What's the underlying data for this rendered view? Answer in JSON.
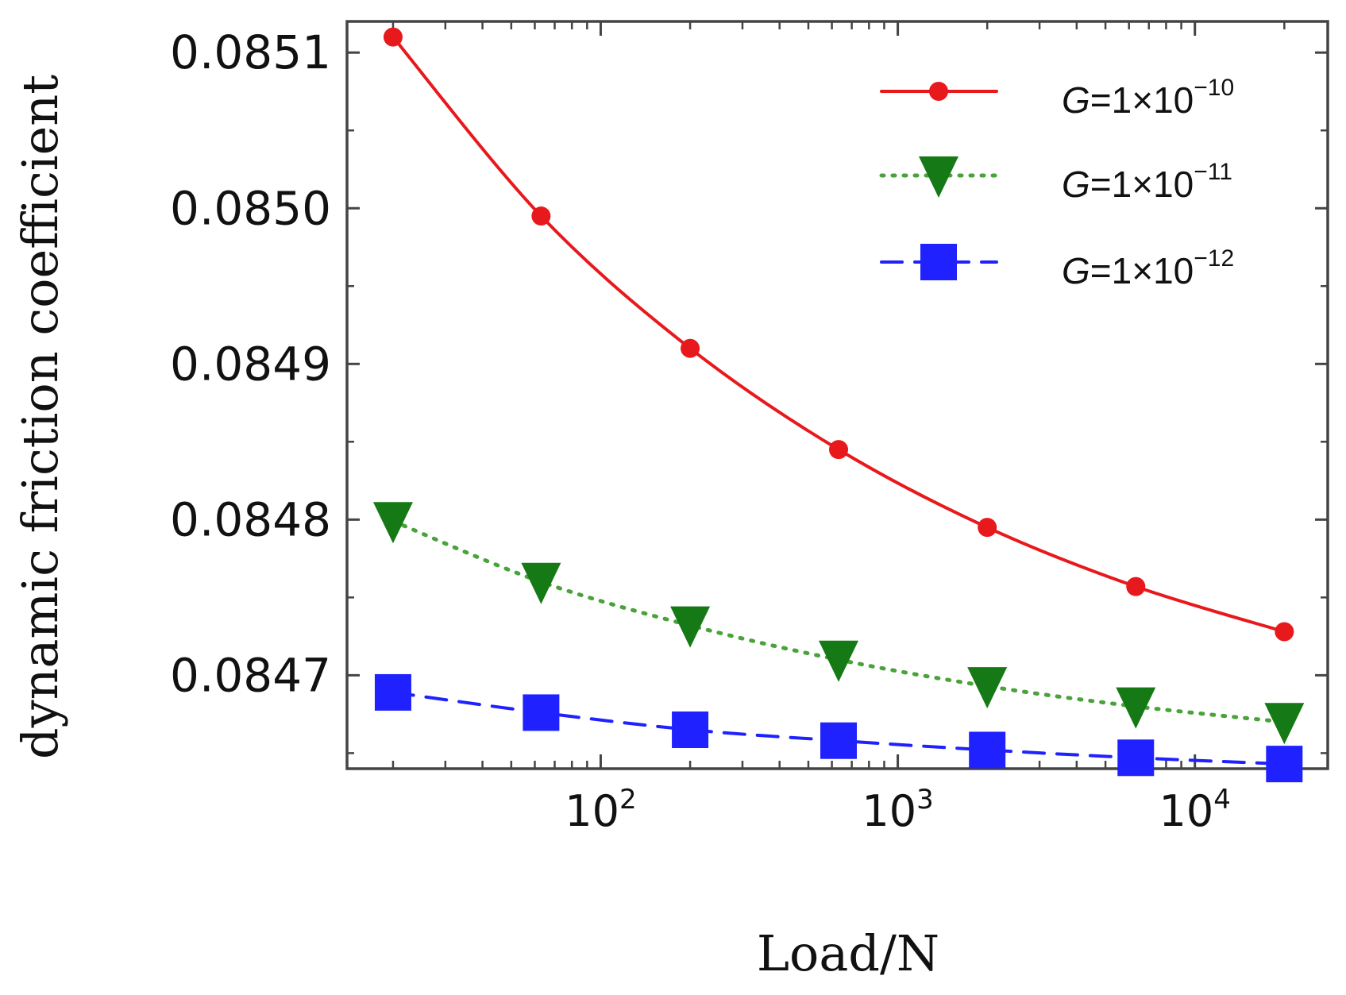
{
  "chart_data": {
    "type": "line",
    "xlabel": "Load/N",
    "ylabel": "dynamic friction coefficient",
    "x_scale": "log",
    "xlim": [
      14,
      28000
    ],
    "ylim": [
      0.08464,
      0.08512
    ],
    "grid": false,
    "legend_position": "top-right",
    "y_ticks": [
      "0.0847",
      "0.0848",
      "0.0849",
      "0.0850",
      "0.0851"
    ],
    "y_tick_values": [
      0.0847,
      0.0848,
      0.0849,
      0.085,
      0.0851
    ],
    "x_ticks": [
      {
        "value": 100,
        "base": "10",
        "exp": "2"
      },
      {
        "value": 1000,
        "base": "10",
        "exp": "3"
      },
      {
        "value": 10000,
        "base": "10",
        "exp": "4"
      }
    ],
    "x": [
      20,
      63,
      200,
      632,
      2000,
      6325,
      20000
    ],
    "series": [
      {
        "name_prefix": "G",
        "name_mid": "=1×10",
        "name_exp": "−10",
        "color": "#e8191c",
        "marker": "circle",
        "dash": "solid",
        "values": [
          0.08511,
          0.084995,
          0.08491,
          0.084845,
          0.084795,
          0.084757,
          0.084728
        ]
      },
      {
        "name_prefix": "G",
        "name_mid": "=1×10",
        "name_exp": "−11",
        "color": "#4aa23a",
        "marker_color": "#157a15",
        "marker": "triangle-down",
        "dash": "dotted",
        "values": [
          0.084799,
          0.08476,
          0.084732,
          0.08471,
          0.084693,
          0.08468,
          0.08467
        ]
      },
      {
        "name_prefix": "G",
        "name_mid": "=1×10",
        "name_exp": "−12",
        "color": "#1f22ff",
        "marker": "square",
        "dash": "dashed",
        "values": [
          0.084689,
          0.084676,
          0.084665,
          0.084658,
          0.084652,
          0.084647,
          0.084643
        ]
      }
    ]
  }
}
